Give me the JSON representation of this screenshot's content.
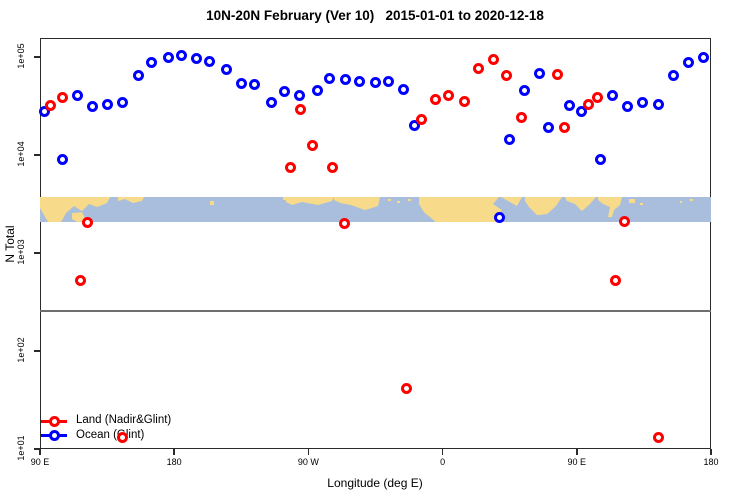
{
  "title": "10N-20N February (Ver 10)   2015-01-01 to 2020-12-18",
  "axes": {
    "y_label": "N Total",
    "x_label": "Longitude (deg E)",
    "y_tick_labels": [
      "1e+05",
      "1e+04",
      "1e+03",
      "1e+02",
      "1e+01"
    ],
    "x_tick_labels": [
      "90 E",
      "180",
      "90 W",
      "0",
      "90 E",
      "180"
    ]
  },
  "legend": [
    {
      "label": "Land (Nadir&Glint)",
      "color": "#ff0000",
      "key": "land"
    },
    {
      "label": "Ocean (Glint)",
      "color": "#0000ff",
      "key": "ocean"
    }
  ],
  "colors": {
    "land_points": "#ff0000",
    "ocean_points": "#0000ff",
    "map_land": "#f7da8a",
    "map_ocean": "#a9bedd",
    "axis": "#2b2b2b",
    "reference_line": "#6e6e6e"
  },
  "chart_data": {
    "type": "scatter",
    "title": "10N-20N February (Ver 10)   2015-01-01 to 2020-12-18",
    "xlabel": "Longitude (deg E)",
    "ylabel": "N Total",
    "y_scale": "log",
    "ylim": [
      10,
      100000
    ],
    "x_axis": {
      "start_deg": 90,
      "span_deg": 450,
      "tick_degrees": [
        90,
        180,
        270,
        360,
        450,
        540
      ],
      "tick_labels": [
        "90 E",
        "180",
        "90 W",
        "0",
        "90 E",
        "180"
      ]
    },
    "reference_line_n": 258,
    "map_band": {
      "n_top": 3700,
      "n_bottom": 2050
    },
    "series": [
      {
        "name": "Ocean (Glint)",
        "color": "#0000ff",
        "points": [
          [
            93,
            28000
          ],
          [
            115,
            40000
          ],
          [
            125,
            31000
          ],
          [
            135,
            33000
          ],
          [
            145,
            34000
          ],
          [
            156,
            65000
          ],
          [
            165,
            87000
          ],
          [
            176,
            98000
          ],
          [
            185,
            104000
          ],
          [
            195,
            96000
          ],
          [
            204,
            89000
          ],
          [
            215,
            74000
          ],
          [
            225,
            54000
          ],
          [
            234,
            52000
          ],
          [
            245,
            34000
          ],
          [
            254,
            44000
          ],
          [
            264,
            40000
          ],
          [
            276,
            46000
          ],
          [
            284,
            60000
          ],
          [
            295,
            59000
          ],
          [
            304,
            56000
          ],
          [
            315,
            55000
          ],
          [
            324,
            56000
          ],
          [
            334,
            47000
          ],
          [
            341,
            20000
          ],
          [
            405,
            14500
          ],
          [
            415,
            45000
          ],
          [
            425,
            68000
          ],
          [
            431,
            19000
          ],
          [
            445,
            32000
          ],
          [
            453,
            28000
          ],
          [
            474,
            40000
          ],
          [
            484,
            31000
          ],
          [
            494,
            34000
          ],
          [
            505,
            33000
          ],
          [
            515,
            65000
          ],
          [
            525,
            87000
          ],
          [
            535,
            100000
          ],
          [
            105,
            9000
          ],
          [
            466,
            9000
          ],
          [
            398,
            2300
          ]
        ]
      },
      {
        "name": "Land (Nadir&Glint)",
        "color": "#ff0000",
        "points": [
          [
            97,
            32000
          ],
          [
            105,
            39000
          ],
          [
            258,
            7500
          ],
          [
            265,
            29000
          ],
          [
            273,
            12500
          ],
          [
            286,
            7500
          ],
          [
            346,
            23000
          ],
          [
            355,
            37000
          ],
          [
            364,
            40000
          ],
          [
            375,
            35000
          ],
          [
            384,
            76000
          ],
          [
            394,
            95000
          ],
          [
            403,
            65000
          ],
          [
            413,
            24000
          ],
          [
            437,
            67000
          ],
          [
            442,
            19000
          ],
          [
            458,
            33000
          ],
          [
            464,
            39000
          ],
          [
            122,
            2050
          ],
          [
            294,
            2000
          ],
          [
            482,
            2100
          ],
          [
            117,
            530
          ],
          [
            476,
            530
          ],
          [
            336,
            41
          ],
          [
            145,
            13
          ],
          [
            505,
            13
          ]
        ]
      }
    ]
  }
}
